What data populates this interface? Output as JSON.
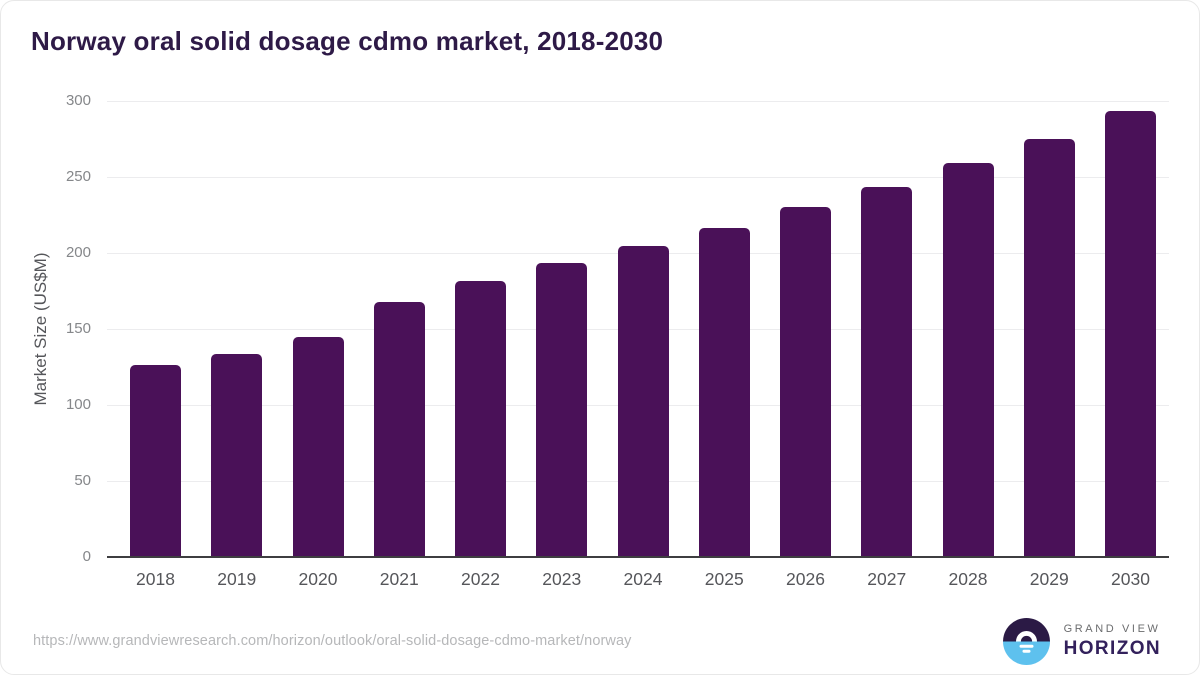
{
  "title": "Norway oral solid dosage cdmo market, 2018-2030",
  "chart_data": {
    "type": "bar",
    "title": "Norway oral solid dosage cdmo market, 2018-2030",
    "categories": [
      "2018",
      "2019",
      "2020",
      "2021",
      "2022",
      "2023",
      "2024",
      "2025",
      "2026",
      "2027",
      "2028",
      "2029",
      "2030"
    ],
    "values": [
      126,
      133.5,
      145,
      167.5,
      181.5,
      193.5,
      204.5,
      216.5,
      230,
      243.5,
      259.5,
      275,
      293.5
    ],
    "xlabel": "",
    "ylabel": "Market Size (US$M)",
    "ylim": [
      0,
      300
    ],
    "y_ticks": [
      0,
      50,
      100,
      150,
      200,
      250,
      300
    ],
    "grid": true,
    "legend": false,
    "bar_color": "#4a1158"
  },
  "colors": {
    "bar": "#4a1158",
    "title_text": "#2e1a47",
    "axis_line": "#3e3e40",
    "gridline": "#ececee",
    "tick_text": "#85878a",
    "logo_purple": "#2b1a45",
    "logo_blue": "#5ec1ee"
  },
  "footer": {
    "source_url": "https://www.grandviewresearch.com/horizon/outlook/oral-solid-dosage-cdmo-market/norway",
    "logo": {
      "line1": "GRAND VIEW",
      "line2": "HORIZON"
    }
  }
}
